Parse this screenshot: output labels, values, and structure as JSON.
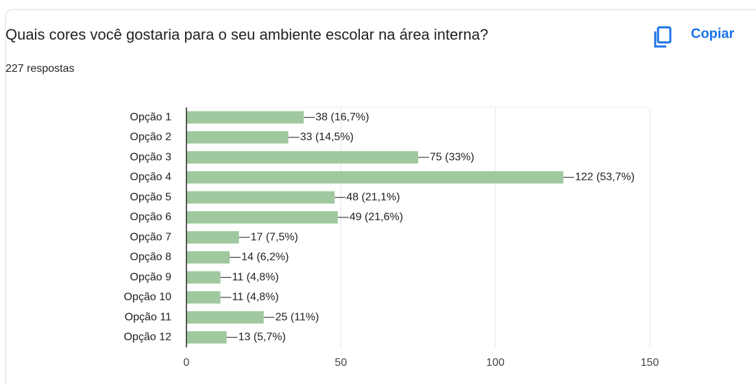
{
  "chart_data": {
    "type": "bar",
    "orientation": "horizontal",
    "title": "Quais cores você gostaria para o seu ambiente escolar na área interna?",
    "subtitle": "227 respostas",
    "categories": [
      "Opção 1",
      "Opção 2",
      "Opção 3",
      "Opção 4",
      "Opção 5",
      "Opção 6",
      "Opção 7",
      "Opção 8",
      "Opção 9",
      "Opção 10",
      "Opção 11",
      "Opção 12"
    ],
    "values": [
      38,
      33,
      75,
      122,
      48,
      49,
      17,
      14,
      11,
      11,
      25,
      13
    ],
    "value_labels": [
      "38 (16,7%)",
      "33 (14,5%)",
      "75 (33%)",
      "122 (53,7%)",
      "48 (21,1%)",
      "49 (21,6%)",
      "17 (7,5%)",
      "14 (6,2%)",
      "11 (4,8%)",
      "11 (4,8%)",
      "25 (11%)",
      "13 (5,7%)"
    ],
    "color": "#9fc89f",
    "xlim": [
      0,
      150
    ],
    "xticks": [
      0,
      50,
      100,
      150
    ],
    "grid": true
  },
  "copy_button": "Copiar"
}
